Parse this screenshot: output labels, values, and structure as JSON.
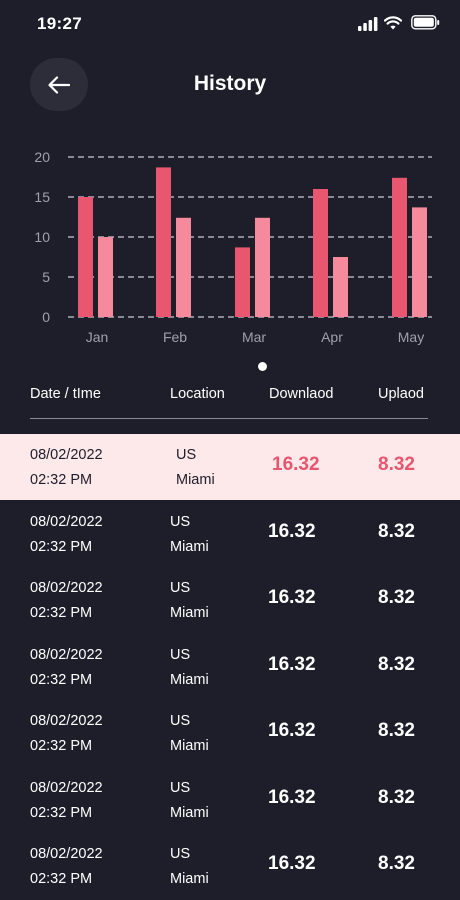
{
  "status_bar": {
    "time": "19:27"
  },
  "header": {
    "title": "History",
    "back_icon": "arrow-left-icon"
  },
  "chart_data": {
    "type": "bar",
    "categories": [
      "Jan",
      "Feb",
      "Mar",
      "Apr",
      "May"
    ],
    "series": [
      {
        "values": [
          15,
          18.7,
          8.7,
          16,
          17.4
        ]
      },
      {
        "values": [
          10,
          12.4,
          12.4,
          7.5,
          13.7
        ]
      }
    ],
    "ylim": [
      0,
      20
    ],
    "yticks": [
      0,
      5,
      10,
      15,
      20
    ],
    "grid": true,
    "colors": [
      "#e8566f",
      "#f48a9c"
    ]
  },
  "table": {
    "headers": {
      "datetime": "Date / tIme",
      "location": "Location",
      "download": "Downlaod",
      "upload": "Uplaod"
    },
    "rows": [
      {
        "date": "08/02/2022",
        "time": "02:32 PM",
        "country": "US",
        "city": "Miami",
        "download": "16.32",
        "upload": "8.32",
        "selected": true
      },
      {
        "date": "08/02/2022",
        "time": "02:32 PM",
        "country": "US",
        "city": "Miami",
        "download": "16.32",
        "upload": "8.32"
      },
      {
        "date": "08/02/2022",
        "time": "02:32 PM",
        "country": "US",
        "city": "Miami",
        "download": "16.32",
        "upload": "8.32"
      },
      {
        "date": "08/02/2022",
        "time": "02:32 PM",
        "country": "US",
        "city": "Miami",
        "download": "16.32",
        "upload": "8.32"
      },
      {
        "date": "08/02/2022",
        "time": "02:32 PM",
        "country": "US",
        "city": "Miami",
        "download": "16.32",
        "upload": "8.32"
      },
      {
        "date": "08/02/2022",
        "time": "02:32 PM",
        "country": "US",
        "city": "Miami",
        "download": "16.32",
        "upload": "8.32"
      },
      {
        "date": "08/02/2022",
        "time": "02:32 PM",
        "country": "US",
        "city": "Miami",
        "download": "16.32",
        "upload": "8.32"
      }
    ]
  },
  "colors": {
    "background": "#1e1e2a",
    "accent": "#e8566f",
    "selected_row": "#fde8ea"
  }
}
